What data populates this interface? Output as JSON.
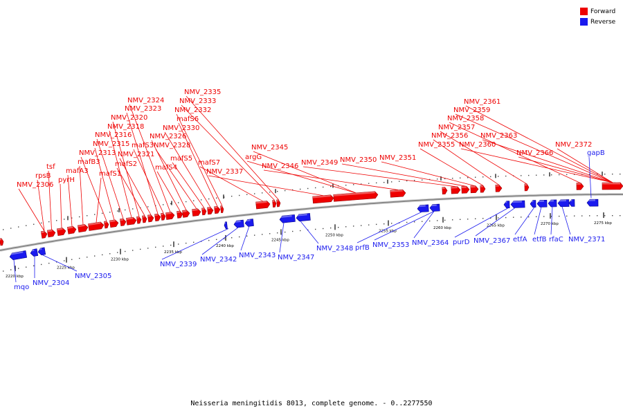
{
  "title": "Neisseria meningitidis 8013, complete genome. - 0..2277550",
  "colors": {
    "forward": "#ee0000",
    "reverse": "#1a1aee",
    "backbone": "#888888"
  },
  "legend": [
    {
      "label": "Forward",
      "strand": "forward"
    },
    {
      "label": "Reverse",
      "strand": "reverse"
    }
  ],
  "ticks": [
    "2220 kbp",
    "2225 kbp",
    "2230 kbp",
    "2235 kbp",
    "2240 kbp",
    "2245 kbp",
    "2250 kbp",
    "2255 kbp",
    "2260 kbp",
    "2265 kbp",
    "2270 kbp",
    "2275 kbp"
  ],
  "forward_labels": [
    "NMV_2306",
    "rpsB",
    "tsf",
    "pyrH",
    "mafA3",
    "mafB3",
    "mafS1",
    "NMV_2313",
    "NMV_2315",
    "NMV_2316",
    "NMV_2318",
    "NMV_2320",
    "mafS2",
    "NMV_2321",
    "NMV_2323",
    "mafS3",
    "NMV_2324",
    "mafS4",
    "NMV_2326",
    "NMV_2328",
    "mafS5",
    "NMV_2330",
    "mafS6",
    "NMV_2332",
    "mafS7",
    "NMV_2333",
    "NMV_2335",
    "NMV_2337",
    "argG",
    "NMV_2345",
    "NMV_2346",
    "NMV_2349",
    "NMV_2350",
    "NMV_2351",
    "NMV_2355",
    "NMV_2356",
    "NMV_2357",
    "NMV_2358",
    "NMV_2359",
    "NMV_2360",
    "NMV_2361",
    "NMV_2363",
    "NMV_2366",
    "NMV_2372"
  ],
  "reverse_labels": [
    "mqo",
    "NMV_2304",
    "NMV_2305",
    "NMV_2339",
    "NMV_2342",
    "NMV_2343",
    "NMV_2347",
    "NMV_2348",
    "prfB",
    "NMV_2353",
    "NMV_2364",
    "purD",
    "NMV_2367",
    "etfA",
    "etfB",
    "rfaC",
    "NMV_2371",
    "gapB"
  ]
}
